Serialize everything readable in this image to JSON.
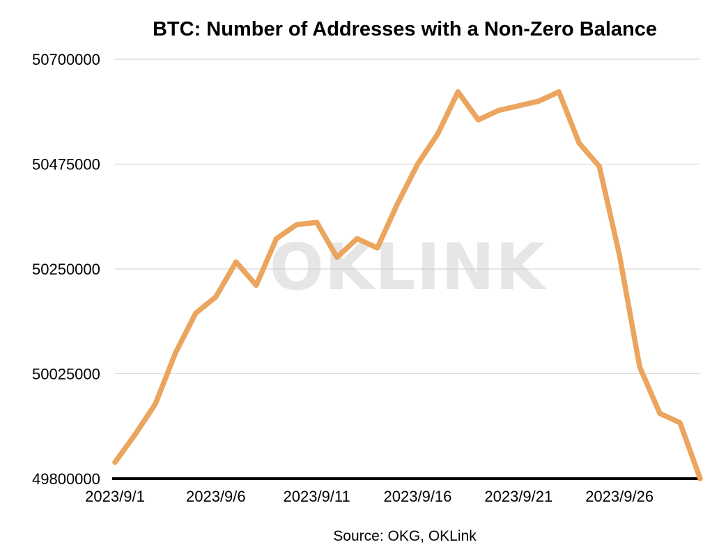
{
  "title": "BTC: Number of Addresses with a Non-Zero Balance",
  "source": "Source: OKG, OKLink",
  "watermark": "OKLINK",
  "colors": {
    "line": "#EBA55E",
    "grid": "#cccccc",
    "axis": "#000000",
    "text": "#000000",
    "watermark": "#e6e6e6",
    "background": "#ffffff"
  },
  "chart_data": {
    "type": "line",
    "title": "BTC: Number of Addresses with a Non-Zero Balance",
    "xlabel": "",
    "ylabel": "",
    "x": [
      "2023/9/1",
      "2023/9/2",
      "2023/9/3",
      "2023/9/4",
      "2023/9/5",
      "2023/9/6",
      "2023/9/7",
      "2023/9/8",
      "2023/9/9",
      "2023/9/10",
      "2023/9/11",
      "2023/9/12",
      "2023/9/13",
      "2023/9/14",
      "2023/9/15",
      "2023/9/16",
      "2023/9/17",
      "2023/9/18",
      "2023/9/19",
      "2023/9/20",
      "2023/9/21",
      "2023/9/22",
      "2023/9/23",
      "2023/9/24",
      "2023/9/25",
      "2023/9/26",
      "2023/9/27",
      "2023/9/28",
      "2023/9/29",
      "2023/9/30"
    ],
    "values": [
      49835000,
      49895000,
      49960000,
      50070000,
      50155000,
      50190000,
      50265000,
      50215000,
      50315000,
      50345000,
      50350000,
      50275000,
      50315000,
      50295000,
      50390000,
      50475000,
      50540000,
      50630000,
      50570000,
      50590000,
      50600000,
      50610000,
      50630000,
      50520000,
      50470000,
      50280000,
      50040000,
      49940000,
      49920000,
      49800000
    ],
    "x_tick_labels": [
      "2023/9/1",
      "2023/9/6",
      "2023/9/11",
      "2023/9/16",
      "2023/9/21",
      "2023/9/26"
    ],
    "x_tick_indices": [
      0,
      5,
      10,
      15,
      20,
      25
    ],
    "y_ticks": [
      49800000,
      50025000,
      50250000,
      50475000,
      50700000
    ],
    "ylim": [
      49800000,
      50700000
    ],
    "grid": "horizontal",
    "legend": "none"
  }
}
